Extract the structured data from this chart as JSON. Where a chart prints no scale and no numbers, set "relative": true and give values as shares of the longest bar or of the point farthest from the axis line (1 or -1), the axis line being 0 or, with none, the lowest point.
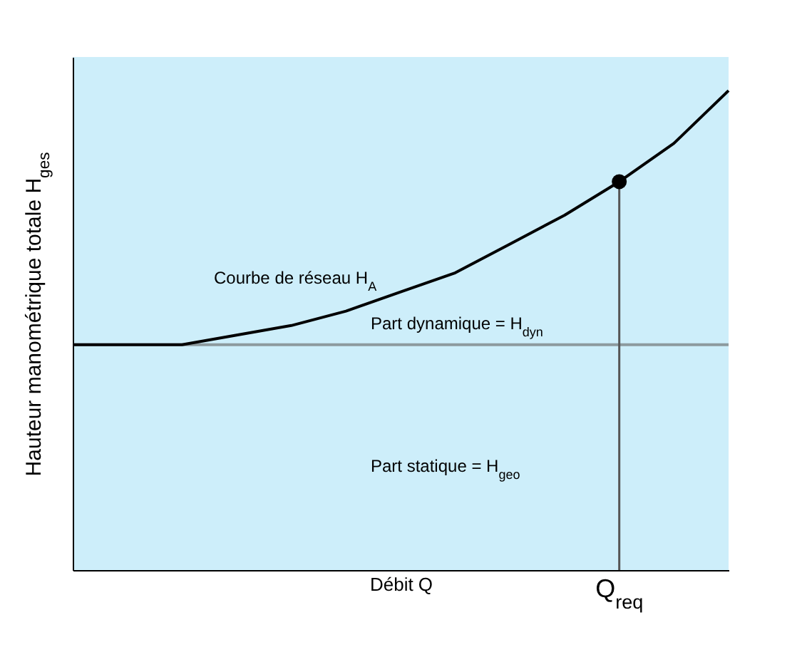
{
  "chart_data": {
    "type": "line",
    "relative": true,
    "xlabel": "Débit Q",
    "ylabel": "Hauteur manométrique totale  H$_{ges}$",
    "categories": [
      null,
      null,
      null,
      null,
      null,
      null,
      null,
      null,
      null,
      null,
      null,
      null,
      null
    ],
    "series": [
      {
        "color": "#000000",
        "values": [
          0.47,
          0.47,
          0.47,
          0.49,
          0.51,
          0.54,
          0.58,
          0.62,
          0.68,
          0.74,
          0.81,
          0.89,
          1.0
        ]
      }
    ],
    "marker": "none",
    "ref_lines": [
      {
        "axis": "y",
        "value": 0.47,
        "color": "#8c9a9e"
      }
    ],
    "annotations": [
      "Courbe de réseau H$_{A}$",
      "Part dynamique = H$_{dyn}$",
      "Part statique = H$_{geo}$",
      "Q$_{req}$"
    ]
  }
}
